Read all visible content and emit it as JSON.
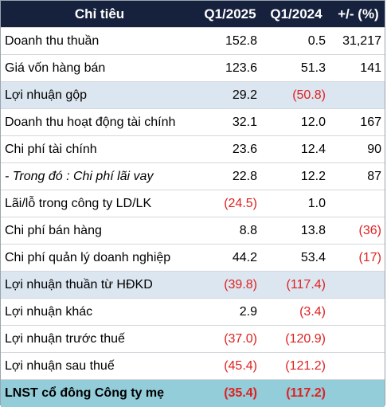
{
  "header": {
    "label": "Chỉ tiêu",
    "q1_2025": "Q1/2025",
    "q1_2024": "Q1/2024",
    "change": "+/- (%)"
  },
  "rows": [
    {
      "label": "Doanh thu thuần",
      "q1_2025": "152.8",
      "q1_2024": "0.5",
      "change": "31,217"
    },
    {
      "label": "Giá vốn hàng bán",
      "q1_2025": "123.6",
      "q1_2024": "51.3",
      "change": "141"
    },
    {
      "label": "Lợi nhuận gộp",
      "q1_2025": "29.2",
      "q1_2024": "(50.8)",
      "change": ""
    },
    {
      "label": "Doanh thu hoạt động tài chính",
      "q1_2025": "32.1",
      "q1_2024": "12.0",
      "change": "167"
    },
    {
      "label": "Chi phí tài chính",
      "q1_2025": "23.6",
      "q1_2024": "12.4",
      "change": "90"
    },
    {
      "label": "- Trong đó : Chi phí lãi vay",
      "q1_2025": "22.8",
      "q1_2024": "12.2",
      "change": "87"
    },
    {
      "label": "Lãi/lỗ trong công ty LD/LK",
      "q1_2025": "(24.5)",
      "q1_2024": "1.0",
      "change": ""
    },
    {
      "label": "Chi phí bán hàng",
      "q1_2025": "8.8",
      "q1_2024": "13.8",
      "change": "(36)"
    },
    {
      "label": "Chi phí quản lý doanh nghiệp",
      "q1_2025": "44.2",
      "q1_2024": "53.4",
      "change": "(17)"
    },
    {
      "label": "Lợi nhuận thuần từ HĐKD",
      "q1_2025": "(39.8)",
      "q1_2024": "(117.4)",
      "change": ""
    },
    {
      "label": "Lợi nhuận khác",
      "q1_2025": "2.9",
      "q1_2024": "(3.4)",
      "change": ""
    },
    {
      "label": "Lợi nhuận trước thuế",
      "q1_2025": "(37.0)",
      "q1_2024": "(120.9)",
      "change": ""
    },
    {
      "label": "Lợi nhuận sau thuế",
      "q1_2025": "(45.4)",
      "q1_2024": "(121.2)",
      "change": ""
    },
    {
      "label": "LNST cổ đông Công ty mẹ",
      "q1_2025": "(35.4)",
      "q1_2024": "(117.2)",
      "change": ""
    }
  ],
  "colors": {
    "header_bg": "#16213e",
    "highlight_bg": "#dce6f0",
    "final_bg": "#93cdd9",
    "negative": "#e02020"
  }
}
